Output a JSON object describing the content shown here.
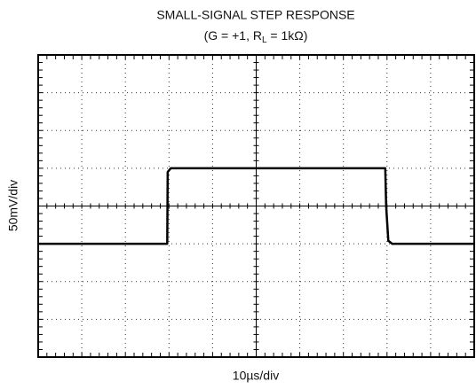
{
  "chart_data": {
    "type": "line",
    "title": "SMALL-SIGNAL STEP RESPONSE",
    "subtitle": [
      "(G = +1, R",
      "L",
      " = 1kΩ)"
    ],
    "xlabel": "10µs/div",
    "ylabel": "50mV/div",
    "xlim": [
      0,
      100
    ],
    "ylim": [
      -200,
      200
    ],
    "xticks": [
      0,
      10,
      20,
      30,
      40,
      50,
      60,
      70,
      80,
      90,
      100
    ],
    "yticks": [
      -200,
      -150,
      -100,
      -50,
      0,
      50,
      100,
      150,
      200
    ],
    "grid": true,
    "series": [
      {
        "color": "#000000",
        "x": [
          0,
          29.6,
          29.7,
          30.4,
          79.6,
          79.8,
          80.3,
          81.2,
          100
        ],
        "values": [
          -50,
          -50,
          45,
          50,
          50,
          0,
          -46,
          -50,
          -50
        ]
      }
    ]
  }
}
